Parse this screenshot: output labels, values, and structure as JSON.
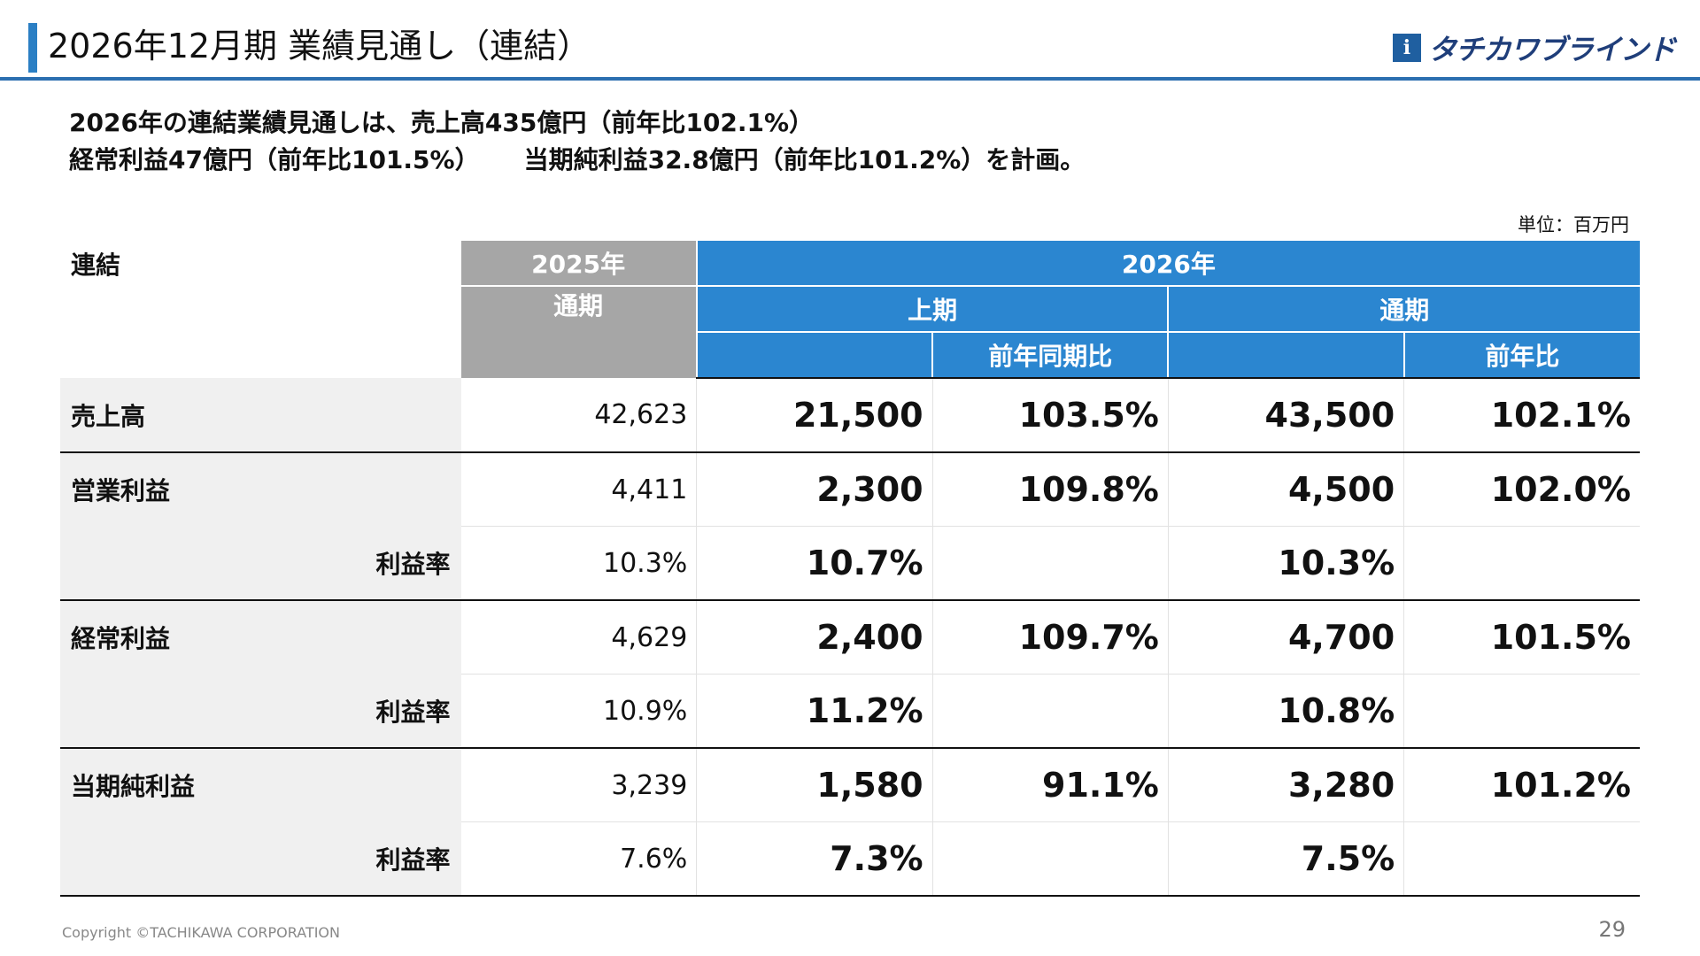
{
  "header": {
    "title": "2026年12月期 業績見通し（連結）",
    "logo_text": "タチカワブラインド",
    "logo_mark": "i"
  },
  "summary": {
    "line1": "2026年の連結業績見通しは、売上高435億円（前年比102.1%）",
    "line2a": "経常利益47億円（前年比101.5%）",
    "line2b": "当期純利益32.8億円（前年比101.2%）を計画。"
  },
  "unit": "単位：百万円",
  "table": {
    "corner_label": "連結",
    "year_prev": "2025年",
    "year_cur": "2026年",
    "prev_period": "通期",
    "first_half": "上期",
    "full_year": "通期",
    "yoy_half": "前年同期比",
    "yoy_full": "前年比",
    "rows": [
      {
        "label": "売上高",
        "prev": "42,623",
        "h1": "21,500",
        "h1_yoy": "103.5%",
        "fy": "43,500",
        "fy_yoy": "102.1%"
      },
      {
        "label": "営業利益",
        "prev": "4,411",
        "h1": "2,300",
        "h1_yoy": "109.8%",
        "fy": "4,500",
        "fy_yoy": "102.0%"
      },
      {
        "label": "利益率",
        "prev": "10.3%",
        "h1": "10.7%",
        "h1_yoy": "",
        "fy": "10.3%",
        "fy_yoy": ""
      },
      {
        "label": "経常利益",
        "prev": "4,629",
        "h1": "2,400",
        "h1_yoy": "109.7%",
        "fy": "4,700",
        "fy_yoy": "101.5%"
      },
      {
        "label": "利益率",
        "prev": "10.9%",
        "h1": "11.2%",
        "h1_yoy": "",
        "fy": "10.8%",
        "fy_yoy": ""
      },
      {
        "label": "当期純利益",
        "prev": "3,239",
        "h1": "1,580",
        "h1_yoy": "91.1%",
        "fy": "3,280",
        "fy_yoy": "101.2%"
      },
      {
        "label": "利益率",
        "prev": "7.6%",
        "h1": "7.3%",
        "h1_yoy": "",
        "fy": "7.5%",
        "fy_yoy": ""
      }
    ]
  },
  "footer": {
    "copyright": "Copyright ©TACHIKAWA CORPORATION",
    "page": "29"
  },
  "colors": {
    "accent": "#2b86d0",
    "prev_header": "#a6a6a6",
    "label_bg": "#f0f0f0"
  }
}
